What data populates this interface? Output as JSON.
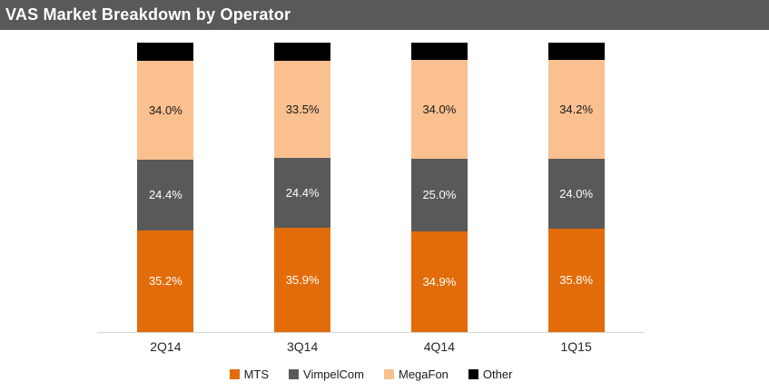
{
  "header": {
    "title": "VAS Market Breakdown by Operator",
    "background_color": "#595959",
    "text_color": "#FFFFFF"
  },
  "chart_data": {
    "type": "bar",
    "subtype": "stacked-100-percent",
    "title": "VAS Market Breakdown by Operator",
    "categories": [
      "2Q14",
      "3Q14",
      "4Q14",
      "1Q15"
    ],
    "series": [
      {
        "name": "MTS",
        "color": "#E36C0A",
        "label_color": "#FFFFFF",
        "show_labels": true,
        "values": [
          35.2,
          35.9,
          34.9,
          35.8
        ]
      },
      {
        "name": "VimpelCom",
        "color": "#595959",
        "label_color": "#FFFFFF",
        "show_labels": true,
        "values": [
          24.4,
          24.4,
          25.0,
          24.0
        ]
      },
      {
        "name": "MegaFon",
        "color": "#FAC090",
        "label_color": "#1A1A1A",
        "show_labels": true,
        "values": [
          34.0,
          33.5,
          34.0,
          34.2
        ]
      },
      {
        "name": "Other",
        "color": "#000000",
        "label_color": "#FFFFFF",
        "show_labels": false,
        "values": [
          6.4,
          6.2,
          6.1,
          6.0
        ]
      }
    ],
    "value_suffix": "%",
    "value_decimals": 1,
    "ylim": [
      0,
      100
    ],
    "grid": false,
    "axis_line_color": "#D9D9D9",
    "legend_position": "bottom",
    "legend_order": [
      "MTS",
      "VimpelCom",
      "MegaFon",
      "Other"
    ]
  }
}
